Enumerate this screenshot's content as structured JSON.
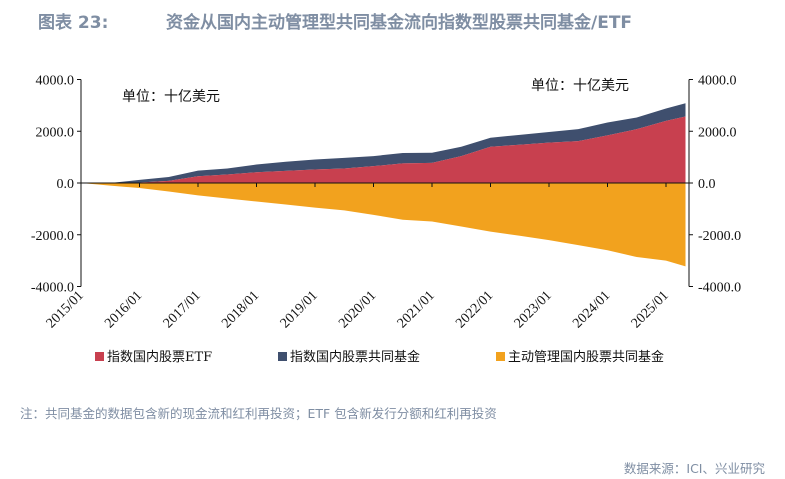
{
  "title": {
    "number": "图表 23:",
    "text": "资金从国内主动管理型共同基金流向指数型股票共同基金/ETF"
  },
  "chart_data": {
    "type": "area",
    "stacked": true,
    "unit_label_left": "单位：十亿美元",
    "unit_label_right": "单位：十亿美元",
    "x": [
      "2015/01",
      "2015/07",
      "2016/01",
      "2016/07",
      "2017/01",
      "2017/07",
      "2018/01",
      "2018/07",
      "2019/01",
      "2019/07",
      "2020/01",
      "2020/07",
      "2021/01",
      "2021/07",
      "2022/01",
      "2022/07",
      "2023/01",
      "2023/07",
      "2024/01",
      "2024/07",
      "2025/01",
      "2025/05"
    ],
    "x_tick_labels": [
      "2015/01",
      "2016/01",
      "2017/01",
      "2018/01",
      "2019/01",
      "2020/01",
      "2021/01",
      "2022/01",
      "2023/01",
      "2024/01",
      "2025/01"
    ],
    "y_ticks": [
      "4000.0",
      "2000.0",
      "0.0",
      "-2000.0",
      "-4000.0"
    ],
    "ylim": [
      -4000,
      4000
    ],
    "grid": false,
    "legend_position": "bottom",
    "series": [
      {
        "name": "指数国内股票ETF",
        "color": "#c8404f",
        "values": [
          0,
          0,
          20,
          80,
          260,
          330,
          415,
          470,
          520,
          560,
          650,
          760,
          780,
          1040,
          1400,
          1480,
          1560,
          1620,
          1840,
          2080,
          2400,
          2570
        ]
      },
      {
        "name": "指数国内股票共同基金",
        "color": "#3f4f6e",
        "values": [
          0,
          0,
          100,
          150,
          220,
          230,
          300,
          350,
          390,
          410,
          390,
          400,
          390,
          360,
          350,
          380,
          410,
          460,
          500,
          450,
          480,
          510
        ]
      },
      {
        "name": "主动管理国内股票共同基金",
        "color": "#f2a21e",
        "values": [
          0,
          -100,
          -195,
          -330,
          -480,
          -600,
          -715,
          -830,
          -950,
          -1060,
          -1230,
          -1420,
          -1490,
          -1680,
          -1880,
          -2040,
          -2210,
          -2400,
          -2600,
          -2860,
          -3000,
          -3220
        ]
      }
    ]
  },
  "note": "注：共同基金的数据包含新的现金流和红利再投资；ETF 包含新发行分额和红利再投资",
  "source": "数据来源：ICI、兴业研究"
}
